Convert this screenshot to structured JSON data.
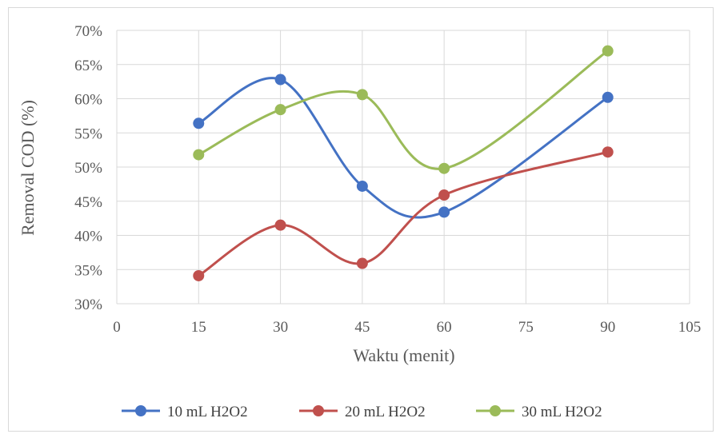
{
  "chart_data": {
    "type": "line",
    "xlabel": "Waktu (menit)",
    "ylabel": "Removal COD (%)",
    "xlim": [
      0,
      105
    ],
    "ylim": [
      30,
      70
    ],
    "x_ticks": [
      0,
      15,
      30,
      45,
      60,
      75,
      90,
      105
    ],
    "x_tick_labels": [
      "0",
      "15",
      "30",
      "45",
      "60",
      "75",
      "90",
      "105"
    ],
    "y_ticks": [
      30,
      35,
      40,
      45,
      50,
      55,
      60,
      65,
      70
    ],
    "y_tick_labels": [
      "30%",
      "35%",
      "40%",
      "45%",
      "50%",
      "55%",
      "60%",
      "65%",
      "70%"
    ],
    "grid": true,
    "legend_position": "bottom",
    "smooth": true,
    "series": [
      {
        "name": "10 mL H2O2",
        "color": "#4472c4",
        "x": [
          15,
          30,
          45,
          60,
          90
        ],
        "y": [
          56.4,
          62.8,
          47.2,
          43.4,
          60.2
        ]
      },
      {
        "name": "20 mL H2O2",
        "color": "#c0504d",
        "x": [
          15,
          30,
          45,
          60,
          90
        ],
        "y": [
          34.1,
          41.5,
          35.9,
          45.9,
          52.2
        ]
      },
      {
        "name": "30 mL H2O2",
        "color": "#9bbb59",
        "x": [
          15,
          30,
          45,
          60,
          90
        ],
        "y": [
          51.8,
          58.4,
          60.6,
          49.8,
          67.0
        ]
      }
    ]
  }
}
